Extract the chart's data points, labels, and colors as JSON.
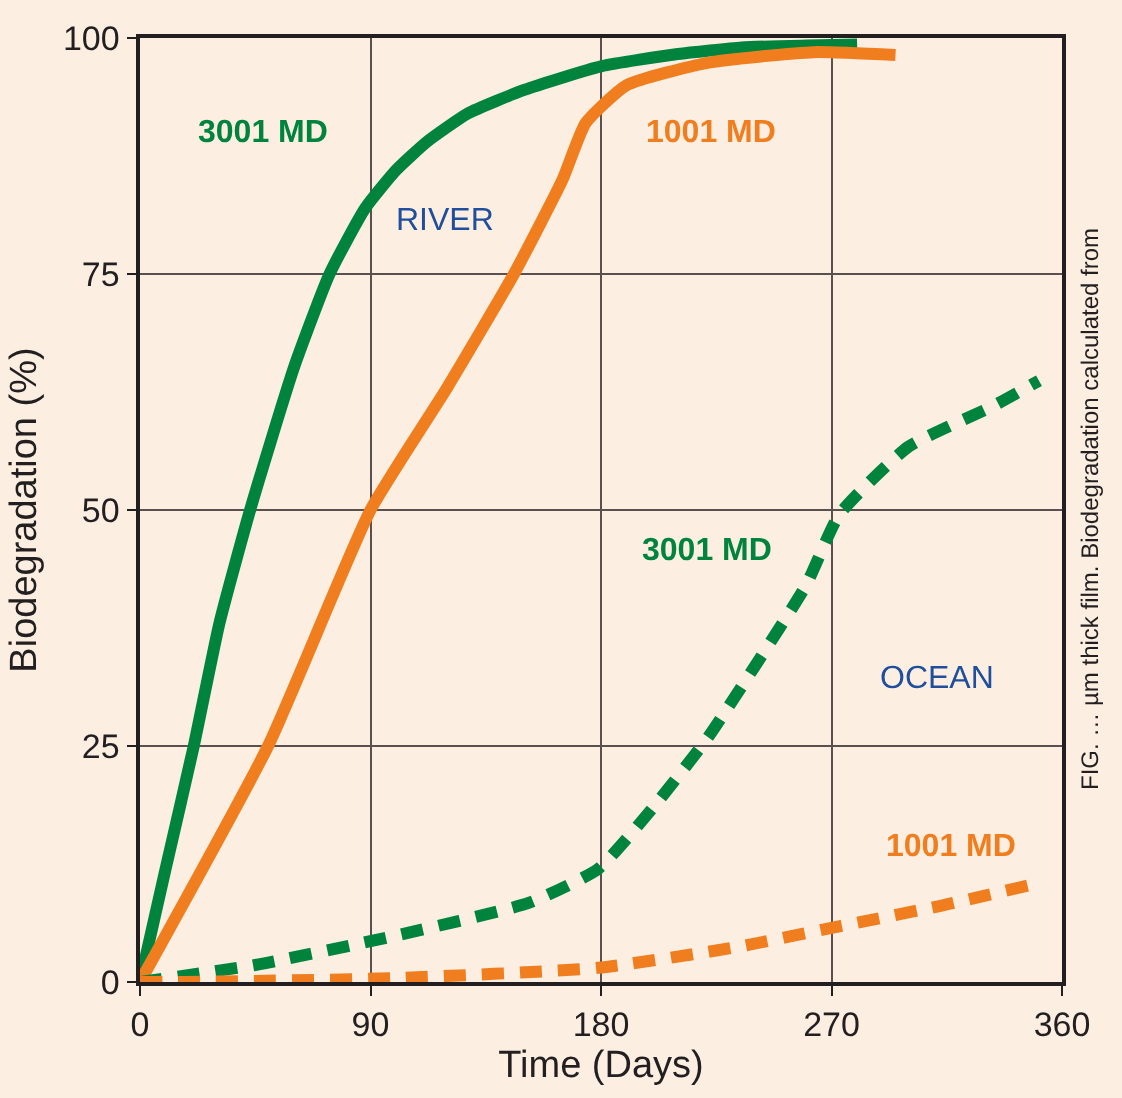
{
  "chart_data": {
    "type": "line",
    "xlabel": "Time (Days)",
    "ylabel": "Biodegradation (%)",
    "xlim": [
      0,
      360
    ],
    "ylim": [
      0,
      100
    ],
    "xticks": [
      0,
      90,
      180,
      270,
      360
    ],
    "yticks": [
      0,
      25,
      50,
      75,
      100
    ],
    "grid": true,
    "legend": false,
    "marker": "none",
    "series": [
      {
        "name": "3001 MD",
        "color": "#00843d",
        "line_style": "solid",
        "x": [
          0,
          10,
          21,
          31,
          43,
          60,
          74,
          88,
          100,
          112,
          128,
          150,
          180,
          210,
          235,
          260,
          280
        ],
        "values": [
          0,
          12,
          25,
          38,
          50,
          65,
          75,
          82,
          86,
          89,
          92,
          94.5,
          97,
          98.3,
          99,
          99.2,
          99.3
        ]
      },
      {
        "name": "1001 MD",
        "color": "#f07d1e",
        "line_style": "solid",
        "x": [
          0,
          50,
          90,
          120,
          146,
          165,
          174,
          190,
          222,
          263,
          295
        ],
        "values": [
          0,
          25,
          50,
          63,
          75,
          85,
          91,
          95,
          97.4,
          98.5,
          98.2
        ]
      },
      {
        "name": "3001 MD",
        "color": "#00843d",
        "line_style": "dashed",
        "x": [
          0,
          45,
          98,
          152,
          179,
          201,
          222,
          239,
          260,
          273,
          300,
          333,
          351
        ],
        "values": [
          0,
          1.8,
          4.8,
          8.4,
          12,
          18.7,
          26,
          33,
          42,
          49.5,
          56.7,
          61,
          63.7
        ]
      },
      {
        "name": "1001 MD",
        "color": "#f07d1e",
        "line_style": "dashed",
        "x": [
          0,
          18,
          98,
          179,
          233,
          273,
          313,
          348
        ],
        "values": [
          0,
          0,
          0.4,
          1.5,
          3.7,
          5.9,
          8.1,
          10.3
        ]
      }
    ],
    "annotations": [
      "RIVER",
      "OCEAN",
      "FIG. … µm thick film. Biodegradation calculated from"
    ]
  }
}
